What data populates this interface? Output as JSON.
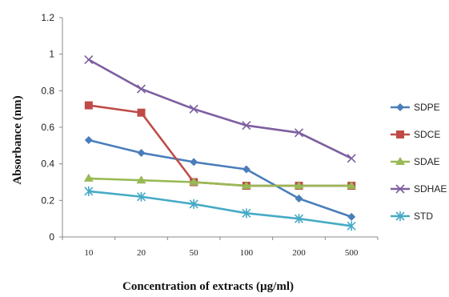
{
  "chart_data": {
    "type": "line",
    "xlabel": "Concentration of extracts (µg/ml)",
    "ylabel": "Absorbance (nm)",
    "categories": [
      "10",
      "20",
      "50",
      "100",
      "200",
      "500"
    ],
    "ylim": [
      0,
      1.2
    ],
    "yticks": [
      "0",
      "0.2",
      "0.4",
      "0.6",
      "0.8",
      "1",
      "1.2"
    ],
    "grid": false,
    "legend_position": "right",
    "series": [
      {
        "name": "SDPE",
        "values": [
          0.53,
          0.46,
          0.41,
          0.37,
          0.21,
          0.11
        ],
        "color": "#4a7ebb",
        "marker": "diamond"
      },
      {
        "name": "SDCE",
        "values": [
          0.72,
          0.68,
          0.3,
          0.28,
          0.28,
          0.28
        ],
        "color": "#be4b48",
        "marker": "square"
      },
      {
        "name": "SDAE",
        "values": [
          0.32,
          0.31,
          0.3,
          0.28,
          0.28,
          0.28
        ],
        "color": "#98b954",
        "marker": "triangle"
      },
      {
        "name": "SDHAE",
        "values": [
          0.97,
          0.81,
          0.7,
          0.61,
          0.57,
          0.43
        ],
        "color": "#7d5fa0",
        "marker": "x"
      },
      {
        "name": "STD",
        "values": [
          0.25,
          0.22,
          0.18,
          0.13,
          0.1,
          0.06
        ],
        "color": "#46aac5",
        "marker": "asterisk"
      }
    ]
  }
}
